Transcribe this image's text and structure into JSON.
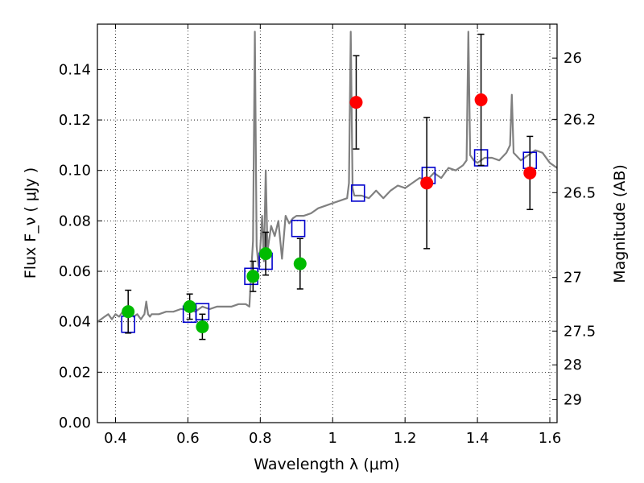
{
  "chart_data": {
    "type": "scatter",
    "xlabel": "Wavelength  λ (μm)",
    "ylabel": "Flux  F_ν  ( μJy )",
    "ylabel_right": "Magnitude (AB)",
    "xlim": [
      0.35,
      1.62
    ],
    "ylim": [
      0.0,
      0.158
    ],
    "grid": true,
    "x_ticks": [
      0.4,
      0.6,
      0.8,
      1.0,
      1.2,
      1.4,
      1.6
    ],
    "x_tick_labels": [
      "0.4",
      "0.6",
      "0.8",
      "1",
      "1.2",
      "1.4",
      "1.6"
    ],
    "y_ticks": [
      0.0,
      0.02,
      0.04,
      0.06,
      0.08,
      0.1,
      0.12,
      0.14
    ],
    "y_tick_labels": [
      "0.00",
      "0.02",
      "0.04",
      "0.06",
      "0.08",
      "0.10",
      "0.12",
      "0.14"
    ],
    "right_axis_ticks": [
      {
        "label": "26",
        "mag": 26.0
      },
      {
        "label": "26.2",
        "mag": 26.2
      },
      {
        "label": "26.5",
        "mag": 26.5
      },
      {
        "label": "27",
        "mag": 27.0
      },
      {
        "label": "27.5",
        "mag": 27.5
      },
      {
        "label": "28",
        "mag": 28.0
      },
      {
        "label": "29",
        "mag": 29.0
      }
    ],
    "series": [
      {
        "type": "line",
        "color": "#808080",
        "x": [
          0.35,
          0.36,
          0.37,
          0.38,
          0.39,
          0.4,
          0.41,
          0.42,
          0.43,
          0.44,
          0.45,
          0.46,
          0.47,
          0.48,
          0.485,
          0.49,
          0.495,
          0.5,
          0.52,
          0.54,
          0.56,
          0.58,
          0.6,
          0.62,
          0.64,
          0.66,
          0.68,
          0.7,
          0.72,
          0.74,
          0.76,
          0.77,
          0.775,
          0.78,
          0.785,
          0.79,
          0.795,
          0.8,
          0.805,
          0.81,
          0.815,
          0.82,
          0.83,
          0.84,
          0.85,
          0.86,
          0.87,
          0.88,
          0.89,
          0.9,
          0.92,
          0.94,
          0.96,
          0.98,
          1.0,
          1.02,
          1.04,
          1.045,
          1.05,
          1.055,
          1.06,
          1.08,
          1.1,
          1.12,
          1.14,
          1.16,
          1.18,
          1.2,
          1.22,
          1.24,
          1.26,
          1.28,
          1.3,
          1.32,
          1.34,
          1.36,
          1.37,
          1.375,
          1.38,
          1.39,
          1.4,
          1.42,
          1.44,
          1.46,
          1.48,
          1.49,
          1.495,
          1.5,
          1.52,
          1.54,
          1.56,
          1.58,
          1.6,
          1.62
        ],
        "y": [
          0.04,
          0.041,
          0.042,
          0.043,
          0.041,
          0.043,
          0.042,
          0.044,
          0.043,
          0.044,
          0.042,
          0.043,
          0.041,
          0.043,
          0.048,
          0.043,
          0.042,
          0.043,
          0.043,
          0.044,
          0.044,
          0.045,
          0.045,
          0.044,
          0.046,
          0.045,
          0.046,
          0.046,
          0.046,
          0.047,
          0.047,
          0.046,
          0.06,
          0.072,
          0.155,
          0.07,
          0.062,
          0.069,
          0.082,
          0.064,
          0.1,
          0.068,
          0.078,
          0.074,
          0.08,
          0.065,
          0.082,
          0.079,
          0.081,
          0.082,
          0.082,
          0.083,
          0.085,
          0.086,
          0.087,
          0.088,
          0.089,
          0.095,
          0.155,
          0.093,
          0.09,
          0.09,
          0.089,
          0.092,
          0.089,
          0.092,
          0.094,
          0.093,
          0.095,
          0.097,
          0.096,
          0.099,
          0.097,
          0.101,
          0.1,
          0.102,
          0.104,
          0.155,
          0.106,
          0.104,
          0.103,
          0.105,
          0.105,
          0.104,
          0.107,
          0.11,
          0.13,
          0.107,
          0.104,
          0.106,
          0.108,
          0.107,
          0.103,
          0.101
        ]
      },
      {
        "type": "scatter",
        "marker": "open-square",
        "color": "#0000cc",
        "x": [
          0.435,
          0.605,
          0.64,
          0.775,
          0.815,
          0.905,
          1.07,
          1.265,
          1.41,
          1.545
        ],
        "y": [
          0.039,
          0.043,
          0.044,
          0.058,
          0.064,
          0.077,
          0.091,
          0.098,
          0.105,
          0.104
        ]
      },
      {
        "type": "scatter",
        "marker": "filled-circle",
        "color": "#00bb00",
        "x": [
          0.435,
          0.605,
          0.64,
          0.78,
          0.815,
          0.91
        ],
        "y": [
          0.044,
          0.046,
          0.038,
          0.058,
          0.067,
          0.063
        ],
        "err": [
          0.0085,
          0.005,
          0.005,
          0.006,
          0.0085,
          0.01
        ]
      },
      {
        "type": "scatter",
        "marker": "filled-circle",
        "color": "#ff0000",
        "x": [
          1.065,
          1.26,
          1.41,
          1.545
        ],
        "y": [
          0.127,
          0.095,
          0.128,
          0.099
        ],
        "err": [
          0.0185,
          0.026,
          0.026,
          0.0145
        ]
      }
    ]
  }
}
